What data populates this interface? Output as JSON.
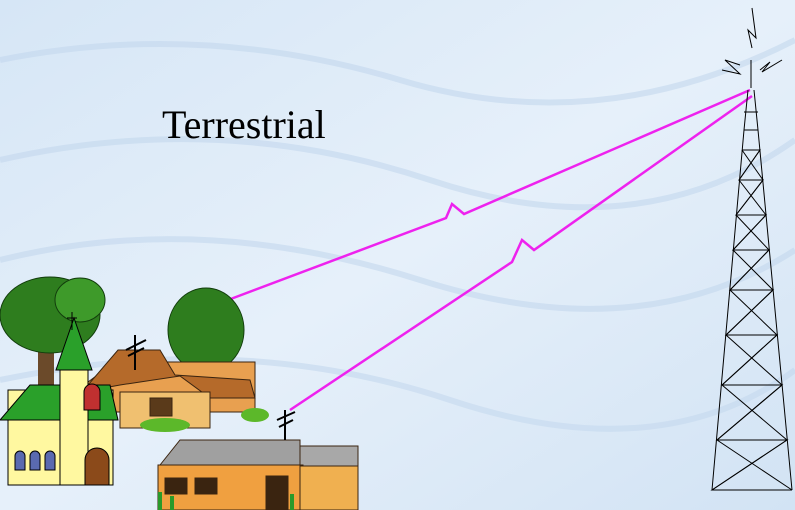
{
  "title": "Terrestrial"
}
